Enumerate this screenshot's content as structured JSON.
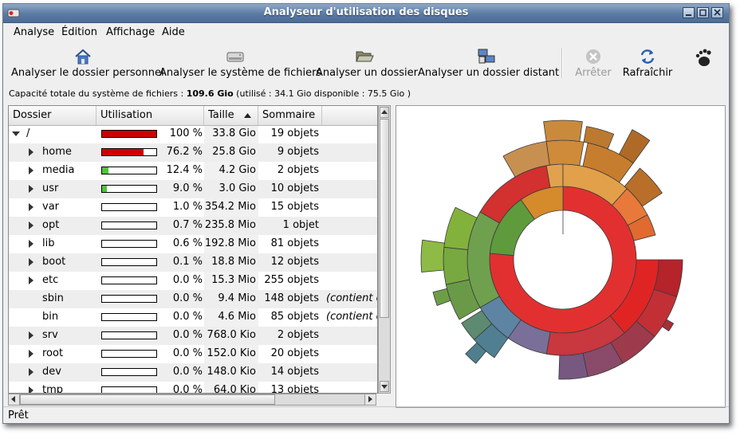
{
  "window": {
    "title": "Analyseur d'utilisation des disques"
  },
  "menu": [
    {
      "label": "Analyse",
      "name": "menu-analyse"
    },
    {
      "label": "Édition",
      "name": "menu-edition"
    },
    {
      "label": "Affichage",
      "name": "menu-affichage"
    },
    {
      "label": "Aide",
      "name": "menu-aide"
    }
  ],
  "toolbar": {
    "home": {
      "label": "Analyser le dossier personnel",
      "icon": "home-icon"
    },
    "filesystem": {
      "label": "Analyser le système de fichiers",
      "icon": "harddisk-icon"
    },
    "folder": {
      "label": "Analyser un dossier",
      "icon": "folder-open-icon"
    },
    "remote": {
      "label": "Analyser un dossier distant",
      "icon": "network-icon"
    },
    "stop": {
      "label": "Arrêter",
      "icon": "stop-icon"
    },
    "refresh": {
      "label": "Rafraîchir",
      "icon": "refresh-icon"
    },
    "gnome": {
      "icon": "gnome-foot-icon"
    }
  },
  "capacity": {
    "prefix": "Capacité totale du système de fichiers : ",
    "total": "109.6 Gio",
    "details": " (utilisé : 34.1 Gio disponible : 75.5 Gio )"
  },
  "table": {
    "columns": {
      "folder": "Dossier",
      "usage": "Utilisation",
      "size": "Taille",
      "summary": "Sommaire"
    },
    "rows": [
      {
        "name": "/",
        "pct": "100 %",
        "frac": 1.0,
        "size": "33.8 Gio",
        "count": "19 objets",
        "note": "",
        "level": 0,
        "expander": "open",
        "color": "#cc0000"
      },
      {
        "name": "home",
        "pct": "76.2 %",
        "frac": 0.762,
        "size": "25.8 Gio",
        "count": "9 objets",
        "note": "",
        "level": 1,
        "expander": "closed",
        "color": "#cc0000"
      },
      {
        "name": "media",
        "pct": "12.4 %",
        "frac": 0.124,
        "size": "4.2 Gio",
        "count": "2 objets",
        "note": "",
        "level": 1,
        "expander": "closed",
        "color": "#4ec53a"
      },
      {
        "name": "usr",
        "pct": "9.0 %",
        "frac": 0.09,
        "size": "3.0 Gio",
        "count": "10 objets",
        "note": "",
        "level": 1,
        "expander": "closed",
        "color": "#4ec53a"
      },
      {
        "name": "var",
        "pct": "1.0 %",
        "frac": 0.0,
        "size": "354.2 Mio",
        "count": "15 objets",
        "note": "",
        "level": 1,
        "expander": "closed",
        "color": "#4ec53a"
      },
      {
        "name": "opt",
        "pct": "0.7 %",
        "frac": 0.0,
        "size": "235.8 Mio",
        "count": "1 objet",
        "note": "",
        "level": 1,
        "expander": "closed",
        "color": "#4ec53a"
      },
      {
        "name": "lib",
        "pct": "0.6 %",
        "frac": 0.0,
        "size": "192.8 Mio",
        "count": "81 objets",
        "note": "",
        "level": 1,
        "expander": "closed",
        "color": "#4ec53a"
      },
      {
        "name": "boot",
        "pct": "0.1 %",
        "frac": 0.0,
        "size": "18.8 Mio",
        "count": "12 objets",
        "note": "",
        "level": 1,
        "expander": "closed",
        "color": "#4ec53a"
      },
      {
        "name": "etc",
        "pct": "0.0 %",
        "frac": 0.0,
        "size": "15.3 Mio",
        "count": "255 objets",
        "note": "",
        "level": 1,
        "expander": "closed",
        "color": "#4ec53a"
      },
      {
        "name": "sbin",
        "pct": "0.0 %",
        "frac": 0.0,
        "size": "9.4 Mio",
        "count": "148 objets",
        "note": "(contient d",
        "level": 1,
        "expander": "none",
        "color": "#4ec53a"
      },
      {
        "name": "bin",
        "pct": "0.0 %",
        "frac": 0.0,
        "size": "4.6 Mio",
        "count": "85 objets",
        "note": "(contient d",
        "level": 1,
        "expander": "none",
        "color": "#4ec53a"
      },
      {
        "name": "srv",
        "pct": "0.0 %",
        "frac": 0.0,
        "size": "768.0 Kio",
        "count": "2 objets",
        "note": "",
        "level": 1,
        "expander": "closed",
        "color": "#4ec53a"
      },
      {
        "name": "root",
        "pct": "0.0 %",
        "frac": 0.0,
        "size": "152.0 Kio",
        "count": "20 objets",
        "note": "",
        "level": 1,
        "expander": "closed",
        "color": "#4ec53a"
      },
      {
        "name": "dev",
        "pct": "0.0 %",
        "frac": 0.0,
        "size": "148.0 Kio",
        "count": "14 objets",
        "note": "",
        "level": 1,
        "expander": "closed",
        "color": "#4ec53a"
      },
      {
        "name": "tmp",
        "pct": "0.0 %",
        "frac": 0.0,
        "size": "64.0 Kio",
        "count": "13 objets",
        "note": "",
        "level": 1,
        "expander": "closed",
        "color": "#4ec53a"
      }
    ]
  },
  "status": "Prêt",
  "colors": {
    "titlebar": "#5a7aa3",
    "usage_high": "#cc0000",
    "usage_low": "#4ec53a"
  }
}
